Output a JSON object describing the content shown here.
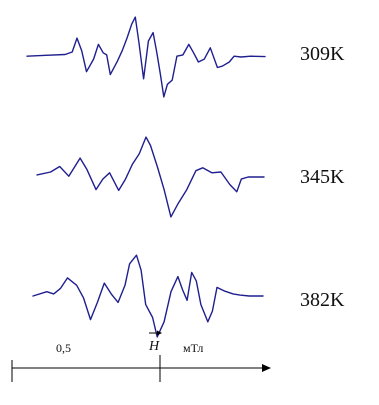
{
  "chart_data": {
    "type": "line",
    "traces": [
      {
        "label": "309K",
        "x": [
          0.0,
          0.08,
          0.16,
          0.19,
          0.21,
          0.23,
          0.25,
          0.28,
          0.3,
          0.32,
          0.335,
          0.35,
          0.38,
          0.4,
          0.42,
          0.44,
          0.455,
          0.47,
          0.49,
          0.51,
          0.53,
          0.545,
          0.56,
          0.575,
          0.59,
          0.61,
          0.63,
          0.655,
          0.68,
          0.7,
          0.72,
          0.745,
          0.77,
          0.8,
          0.82,
          0.85,
          0.87,
          0.9,
          0.94,
          1.0
        ],
        "y": [
          0.02,
          0.04,
          0.06,
          0.12,
          0.45,
          0.15,
          -0.35,
          -0.05,
          0.3,
          0.1,
          0.05,
          -0.42,
          -0.1,
          0.15,
          0.45,
          0.78,
          0.95,
          0.35,
          -0.52,
          0.38,
          0.58,
          0.12,
          -0.4,
          -0.95,
          -0.65,
          -0.55,
          0.02,
          0.05,
          0.3,
          0.1,
          -0.12,
          -0.05,
          0.22,
          -0.25,
          -0.22,
          -0.12,
          0.02,
          0.0,
          0.02,
          0.01
        ]
      },
      {
        "label": "345K",
        "x": [
          0.0,
          0.06,
          0.1,
          0.14,
          0.19,
          0.22,
          0.26,
          0.29,
          0.32,
          0.36,
          0.39,
          0.42,
          0.45,
          0.48,
          0.5,
          0.53,
          0.56,
          0.59,
          0.62,
          0.66,
          0.7,
          0.73,
          0.77,
          0.81,
          0.85,
          0.88,
          0.9,
          0.93,
          1.0
        ],
        "y": [
          0.05,
          0.12,
          0.25,
          0.02,
          0.45,
          0.18,
          -0.3,
          -0.05,
          0.1,
          -0.32,
          -0.05,
          0.3,
          0.55,
          0.95,
          0.75,
          0.25,
          -0.3,
          -0.95,
          -0.65,
          -0.3,
          0.15,
          0.22,
          0.1,
          0.12,
          -0.18,
          -0.35,
          -0.05,
          0.0,
          0.0
        ]
      },
      {
        "label": "382K",
        "x": [
          0.0,
          0.06,
          0.09,
          0.12,
          0.15,
          0.19,
          0.22,
          0.25,
          0.28,
          0.31,
          0.34,
          0.37,
          0.4,
          0.42,
          0.45,
          0.47,
          0.49,
          0.52,
          0.54,
          0.57,
          0.6,
          0.63,
          0.65,
          0.67,
          0.69,
          0.71,
          0.73,
          0.76,
          0.78,
          0.8,
          0.83,
          0.87,
          0.9,
          0.94,
          1.0
        ],
        "y": [
          0.0,
          0.1,
          0.05,
          0.18,
          0.42,
          0.25,
          -0.05,
          -0.55,
          -0.15,
          0.3,
          0.05,
          -0.15,
          0.25,
          0.75,
          0.95,
          0.6,
          -0.2,
          -0.5,
          -0.95,
          -0.6,
          0.1,
          0.45,
          0.15,
          -0.1,
          0.55,
          0.35,
          -0.2,
          -0.6,
          -0.35,
          0.2,
          0.12,
          0.05,
          0.02,
          0.0,
          0.0
        ]
      }
    ],
    "scale_label": "0,5",
    "field_symbol": "H",
    "unit_label": "мТл",
    "scale_value_mT": 0.5,
    "line_color": "#1f1f8f",
    "grid": false
  }
}
